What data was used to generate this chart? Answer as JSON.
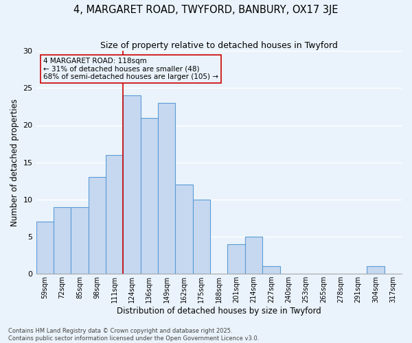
{
  "title1": "4, MARGARET ROAD, TWYFORD, BANBURY, OX17 3JE",
  "title2": "Size of property relative to detached houses in Twyford",
  "xlabel": "Distribution of detached houses by size in Twyford",
  "ylabel": "Number of detached properties",
  "footer": "Contains HM Land Registry data © Crown copyright and database right 2025.\nContains public sector information licensed under the Open Government Licence v3.0.",
  "bins": [
    "59sqm",
    "72sqm",
    "85sqm",
    "98sqm",
    "111sqm",
    "124sqm",
    "136sqm",
    "149sqm",
    "162sqm",
    "175sqm",
    "188sqm",
    "201sqm",
    "214sqm",
    "227sqm",
    "240sqm",
    "253sqm",
    "265sqm",
    "278sqm",
    "291sqm",
    "304sqm",
    "317sqm"
  ],
  "values": [
    7,
    9,
    9,
    13,
    16,
    24,
    21,
    23,
    12,
    10,
    0,
    4,
    5,
    1,
    0,
    0,
    0,
    0,
    0,
    1,
    0
  ],
  "bar_color": "#c5d8f0",
  "bar_edge_color": "#5b9bd5",
  "bg_color": "#eaf3fb",
  "grid_color": "#ffffff",
  "ref_line_x": 4.5,
  "ref_line_color": "#cc0000",
  "annotation_text": "4 MARGARET ROAD: 118sqm\n← 31% of detached houses are smaller (48)\n68% of semi-detached houses are larger (105) →",
  "annotation_box_color": "#cc0000",
  "ylim": [
    0,
    30
  ],
  "yticks": [
    0,
    5,
    10,
    15,
    20,
    25,
    30
  ]
}
